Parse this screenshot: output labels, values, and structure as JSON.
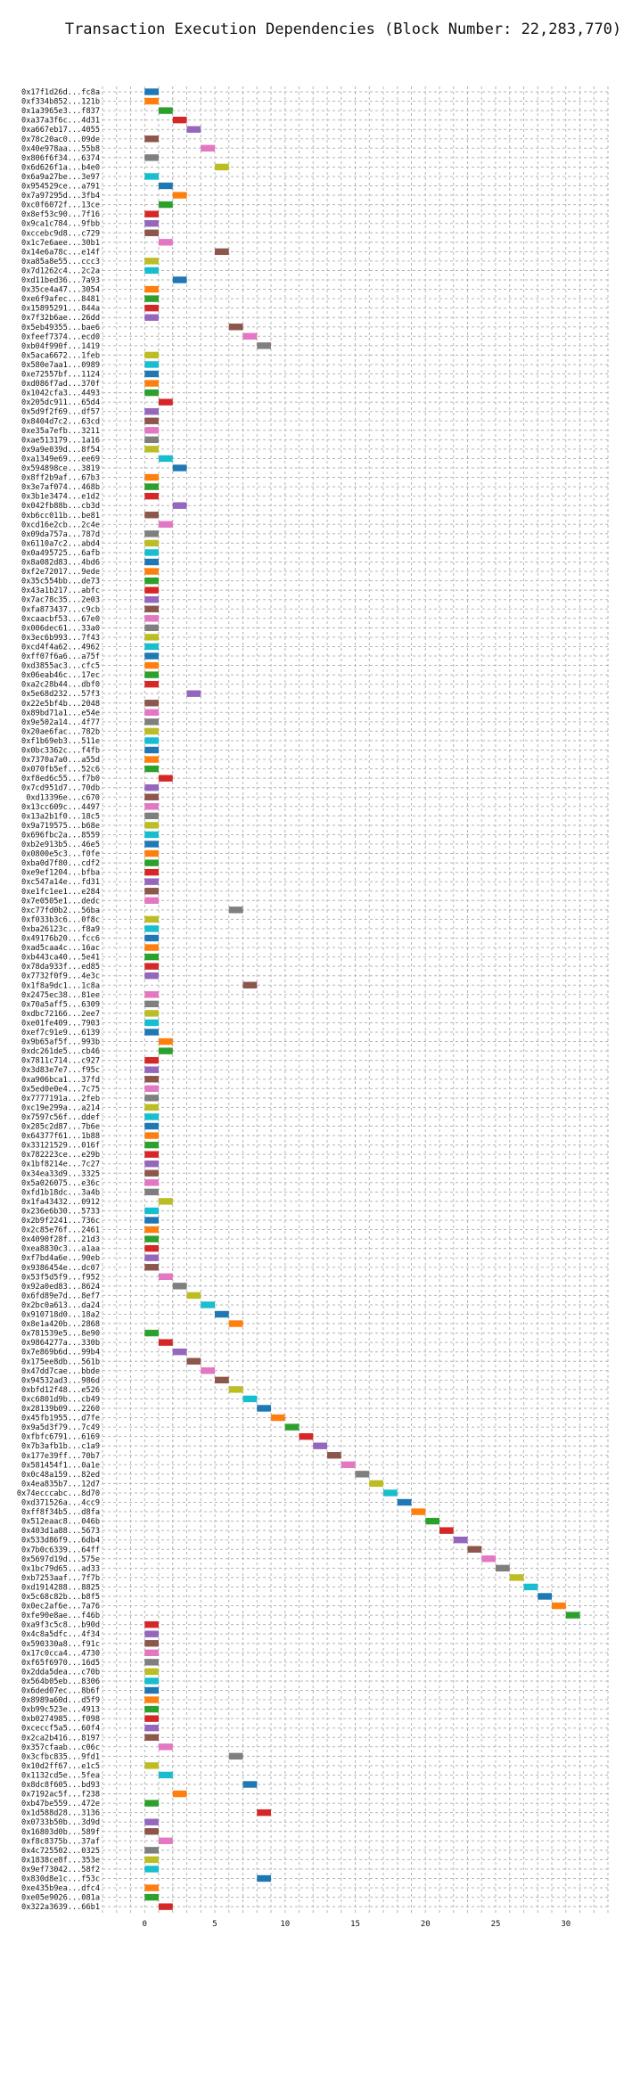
{
  "chart_data": {
    "type": "bar",
    "orientation": "horizontal",
    "title": "Transaction Execution Dependencies (Block Number: 22,283,770)",
    "xlabel": "",
    "ylabel": "",
    "xlim": [
      -3,
      33
    ],
    "xticks": [
      0,
      5,
      10,
      15,
      20,
      25,
      30
    ],
    "grid": true,
    "palette": [
      "#1f77b4",
      "#ff7f0e",
      "#2ca02c",
      "#d62728",
      "#9467bd",
      "#8c564b",
      "#e377c2",
      "#7f7f7f",
      "#bcbd22",
      "#17becf"
    ],
    "categories": [
      "0x17f1d26d...fc8a",
      "0xf334b852...121b",
      "0x1a3965e3...f837",
      "0xa37a3f6c...4d31",
      "0xa667eb17...4055",
      "0x78c20ac0...09de",
      "0x40e978aa...55b8",
      "0x806f6f34...6374",
      "0x6d626f1a...b4e0",
      "0x6a9a27be...3e97",
      "0x954529ce...a791",
      "0x7a97295d...3fb4",
      "0xc0f6072f...13ce",
      "0x8ef53c90...7f16",
      "0x9ca1c784...9fbb",
      "0xccebc9d8...c729",
      "0x1c7e6aee...30b1",
      "0x14e6a78c...e14f",
      "0xa85a8e55...ccc3",
      "0x7d1262c4...2c2a",
      "0xd11bed36...7a93",
      "0x35ce4a47...3054",
      "0xe6f9afec...8481",
      "0x15895291...844a",
      "0x7f32b6ae...26dd",
      "0x5eb49355...bae6",
      "0xfeef7374...ecd0",
      "0xb04f990f...1419",
      "0x5aca6672...1feb",
      "0x580e7aa1...0989",
      "0xe72557bf...1124",
      "0xd086f7ad...370f",
      "0x1042cfa3...4493",
      "0x205dc911...65d4",
      "0x5d9f2f69...df57",
      "0x8404d7c2...63cd",
      "0xe35a7efb...3211",
      "0xae513179...1a16",
      "0x9a9e039d...8f54",
      "0xa1349e69...ee69",
      "0x594898ce...3819",
      "0x8ff2b9af...67b3",
      "0x3e7af074...468b",
      "0x3b1e3474...e1d2",
      "0x042fb88b...cb3d",
      "0xb6cc011b...be81",
      "0xcd16e2cb...2c4e",
      "0x09da757a...787d",
      "0x6110a7c2...abd4",
      "0x0a495725...6afb",
      "0x8a082d83...4bd6",
      "0xf2e72017...9ede",
      "0x35c554bb...de73",
      "0x43a1b217...abfc",
      "0x7ac78c35...2e03",
      "0xfa873437...c9cb",
      "0xcaacbf53...67e0",
      "0x006dec61...33a0",
      "0x3ec6b993...7f43",
      "0xcd4f4a62...4962",
      "0xff07f6a6...a75f",
      "0xd3855ac3...cfc5",
      "0x06eab46c...17ec",
      "0xa2c28b44...dbf0",
      "0x5e68d232...57f3",
      "0x22e5bf4b...2048",
      "0x89bd71a1...e54e",
      "0x9e502a14...4f77",
      "0x20ae6fac...782b",
      "0xf1b69eb3...511e",
      "0x0bc3362c...f4fb",
      "0x7370a7a0...a55d",
      "0x070fb5ef...52c6",
      "0xf8ed6c55...f7b0",
      "0x7cd951d7...70db",
      "0xd13396e...c670",
      "0x13cc609c...4497",
      "0x13a2b1f0...18c5",
      "0x9a719575...b68e",
      "0x696fbc2a...8559",
      "0xb2e913b5...46e5",
      "0x0800e5c3...f0fe",
      "0xba0d7f80...cdf2",
      "0xe9ef1204...bfba",
      "0xc547a14e...fd31",
      "0xe1fc1ee1...e284",
      "0x7e0505e1...dedc",
      "0xc77fd0b2...56ba",
      "0xf033b3c6...0f8c",
      "0xba26123c...f8a9",
      "0x49176b20...fcc6",
      "0xad5caa4c...16ac",
      "0xb443ca40...5e41",
      "0x78da933f...ed85",
      "0x7732f0f9...4e3c",
      "0x1f8a9dc1...1c8a",
      "0x2475ec38...81ee",
      "0x70a5aff5...6309",
      "0xdbc72166...2ee7",
      "0xe01fe409...7903",
      "0xef7c91e9...6139",
      "0x9b65af5f...993b",
      "0xdc261de5...cb46",
      "0x7811c714...c927",
      "0x3d83e7e7...f95c",
      "0xa906bca1...37fd",
      "0x5ed0e0e4...7c75",
      "0x7777191a...2feb",
      "0xc19e299a...a214",
      "0x7597c56f...ddef",
      "0x285c2d87...7b6e",
      "0x64377f61...1b88",
      "0x33121529...016f",
      "0x782223ce...e29b",
      "0x1bf8214e...7c27",
      "0x34ea33d9...3325",
      "0x5a026075...e36c",
      "0xfd1b18dc...3a4b",
      "0x1fa43432...0912",
      "0x236e6b30...5733",
      "0x2b9f2241...736c",
      "0x2c85e76f...2461",
      "0x4090f28f...21d3",
      "0xea8830c3...a1aa",
      "0xf7bd4a6e...90eb",
      "0x9386454e...dc07",
      "0x53f5d5f9...f952",
      "0x92a0ed83...8624",
      "0x6fd89e7d...8ef7",
      "0x2bc0a613...da24",
      "0x910718d0...18a2",
      "0x8e1a420b...2868",
      "0x781539e5...8e90",
      "0x9864277a...330b",
      "0x7e869b6d...99b4",
      "0x175ee8db...561b",
      "0x47dd7cae...bbde",
      "0x94532ad3...986d",
      "0xbfd12f48...e526",
      "0xc6801d9b...cb49",
      "0x28139b09...2260",
      "0x45fb1955...d7fe",
      "0x9a5d3f79...7c49",
      "0xfbfc6791...6169",
      "0x7b3afb1b...c1a9",
      "0x177e39ff...70b7",
      "0x581454f1...0a1e",
      "0x0c48a159...82ed",
      "0x4ea835b7...12d7",
      "0x74ecccabc...8d70",
      "0xd371526a...4cc9",
      "0xff8f34b5...d8fa",
      "0x512eaac8...046b",
      "0x403d1a88...5673",
      "0x533d86f9...6db4",
      "0x7b0c6339...64ff",
      "0x5697d19d...575e",
      "0x1bc79d65...ad33",
      "0xb7253aaf...7f7b",
      "0xd1914288...8825",
      "0x5c68c82b...b8f5",
      "0x0ec2af6e...7a76",
      "0xfe90e8ae...f46b",
      "0xa9f3c5c8...b90d",
      "0x4c8a5dfc...4f34",
      "0x590330a8...f91c",
      "0x17c0cca4...4730",
      "0xf65f6970...16d5",
      "0x2dda5dea...c70b",
      "0x564b05eb...8306",
      "0x6ded07ec...8b6f",
      "0x8989a60d...d5f9",
      "0xb99c523e...4913",
      "0xb0274985...f098",
      "0xceccf5a5...60f4",
      "0x2ca2b416...8197",
      "0x357cfaab...c06c",
      "0x3cfbc835...9fd1",
      "0x10d2ff67...e1c5",
      "0x1132cd5e...5fea",
      "0x8dc8f605...bd93",
      "0x7192ac5f...f238",
      "0xb47be559...472e",
      "0x1d588d28...3136",
      "0x0733b50b...3d9d",
      "0x16803d0b...589f",
      "0xf8c8375b...37af",
      "0x4c725502...0325",
      "0x1838ce8f...353e",
      "0x9ef73042...58f2",
      "0x830d8e1c...f53c",
      "0xe435b9ea...dfc4",
      "0xe05e9026...081a",
      "0x322a3639...66b1"
    ],
    "bars": [
      [
        0,
        0
      ],
      [
        0,
        1
      ],
      [
        1,
        2
      ],
      [
        2,
        3
      ],
      [
        3,
        4
      ],
      [
        0,
        5
      ],
      [
        4,
        6
      ],
      [
        0,
        7
      ],
      [
        5,
        8
      ],
      [
        0,
        9
      ],
      [
        1,
        0
      ],
      [
        2,
        1
      ],
      [
        1,
        2
      ],
      [
        0,
        3
      ],
      [
        0,
        4
      ],
      [
        0,
        5
      ],
      [
        1,
        6
      ],
      [
        5,
        5
      ],
      [
        0,
        8
      ],
      [
        0,
        9
      ],
      [
        2,
        0
      ],
      [
        0,
        1
      ],
      [
        0,
        2
      ],
      [
        0,
        3
      ],
      [
        0,
        4
      ],
      [
        6,
        5
      ],
      [
        7,
        6
      ],
      [
        8,
        7
      ],
      [
        0,
        8
      ],
      [
        0,
        9
      ],
      [
        0,
        0
      ],
      [
        0,
        1
      ],
      [
        0,
        2
      ],
      [
        1,
        3
      ],
      [
        0,
        4
      ],
      [
        0,
        5
      ],
      [
        0,
        6
      ],
      [
        0,
        7
      ],
      [
        0,
        8
      ],
      [
        1,
        9
      ],
      [
        2,
        0
      ],
      [
        0,
        1
      ],
      [
        0,
        2
      ],
      [
        0,
        3
      ],
      [
        2,
        4
      ],
      [
        0,
        5
      ],
      [
        1,
        6
      ],
      [
        0,
        7
      ],
      [
        0,
        8
      ],
      [
        0,
        9
      ],
      [
        0,
        0
      ],
      [
        0,
        1
      ],
      [
        0,
        2
      ],
      [
        0,
        3
      ],
      [
        0,
        4
      ],
      [
        0,
        5
      ],
      [
        0,
        6
      ],
      [
        0,
        7
      ],
      [
        0,
        8
      ],
      [
        0,
        9
      ],
      [
        0,
        0
      ],
      [
        0,
        1
      ],
      [
        0,
        2
      ],
      [
        0,
        3
      ],
      [
        3,
        4
      ],
      [
        0,
        5
      ],
      [
        0,
        6
      ],
      [
        0,
        7
      ],
      [
        0,
        8
      ],
      [
        0,
        9
      ],
      [
        0,
        0
      ],
      [
        0,
        1
      ],
      [
        0,
        2
      ],
      [
        1,
        3
      ],
      [
        0,
        4
      ],
      [
        0,
        5
      ],
      [
        0,
        6
      ],
      [
        0,
        7
      ],
      [
        0,
        8
      ],
      [
        0,
        9
      ],
      [
        0,
        0
      ],
      [
        0,
        1
      ],
      [
        0,
        2
      ],
      [
        0,
        3
      ],
      [
        0,
        4
      ],
      [
        0,
        5
      ],
      [
        0,
        6
      ],
      [
        6,
        7
      ],
      [
        0,
        8
      ],
      [
        0,
        9
      ],
      [
        0,
        0
      ],
      [
        0,
        1
      ],
      [
        0,
        2
      ],
      [
        0,
        3
      ],
      [
        0,
        4
      ],
      [
        7,
        5
      ],
      [
        0,
        6
      ],
      [
        0,
        7
      ],
      [
        0,
        8
      ],
      [
        0,
        9
      ],
      [
        0,
        0
      ],
      [
        1,
        1
      ],
      [
        1,
        2
      ],
      [
        0,
        3
      ],
      [
        0,
        4
      ],
      [
        0,
        5
      ],
      [
        0,
        6
      ],
      [
        0,
        7
      ],
      [
        0,
        8
      ],
      [
        0,
        9
      ],
      [
        0,
        0
      ],
      [
        0,
        1
      ],
      [
        0,
        2
      ],
      [
        0,
        3
      ],
      [
        0,
        4
      ],
      [
        0,
        5
      ],
      [
        0,
        6
      ],
      [
        0,
        7
      ],
      [
        1,
        8
      ],
      [
        0,
        9
      ],
      [
        0,
        0
      ],
      [
        0,
        1
      ],
      [
        0,
        2
      ],
      [
        0,
        3
      ],
      [
        0,
        4
      ],
      [
        0,
        5
      ],
      [
        1,
        6
      ],
      [
        2,
        7
      ],
      [
        3,
        8
      ],
      [
        4,
        9
      ],
      [
        5,
        0
      ],
      [
        6,
        1
      ],
      [
        0,
        2
      ],
      [
        1,
        3
      ],
      [
        2,
        4
      ],
      [
        3,
        5
      ],
      [
        4,
        6
      ],
      [
        5,
        5
      ],
      [
        6,
        8
      ],
      [
        7,
        9
      ],
      [
        8,
        0
      ],
      [
        9,
        1
      ],
      [
        10,
        2
      ],
      [
        11,
        3
      ],
      [
        12,
        4
      ],
      [
        13,
        5
      ],
      [
        14,
        6
      ],
      [
        15,
        7
      ],
      [
        16,
        8
      ],
      [
        17,
        9
      ],
      [
        18,
        0
      ],
      [
        19,
        1
      ],
      [
        20,
        2
      ],
      [
        21,
        3
      ],
      [
        22,
        4
      ],
      [
        23,
        5
      ],
      [
        24,
        6
      ],
      [
        25,
        7
      ],
      [
        26,
        8
      ],
      [
        27,
        9
      ],
      [
        28,
        0
      ],
      [
        29,
        1
      ],
      [
        30,
        2
      ],
      [
        0,
        3
      ],
      [
        0,
        4
      ],
      [
        0,
        5
      ],
      [
        0,
        6
      ],
      [
        0,
        7
      ],
      [
        0,
        8
      ],
      [
        0,
        9
      ],
      [
        0,
        0
      ],
      [
        0,
        1
      ],
      [
        0,
        2
      ],
      [
        0,
        3
      ],
      [
        0,
        4
      ],
      [
        0,
        5
      ],
      [
        1,
        6
      ],
      [
        6,
        7
      ],
      [
        0,
        8
      ],
      [
        1,
        9
      ],
      [
        7,
        0
      ],
      [
        2,
        1
      ],
      [
        0,
        2
      ],
      [
        8,
        3
      ],
      [
        0,
        4
      ],
      [
        0,
        5
      ],
      [
        1,
        6
      ],
      [
        0,
        7
      ],
      [
        0,
        8
      ],
      [
        0,
        9
      ],
      [
        8,
        0
      ],
      [
        0,
        1
      ],
      [
        0,
        2
      ],
      [
        1,
        3
      ]
    ]
  }
}
